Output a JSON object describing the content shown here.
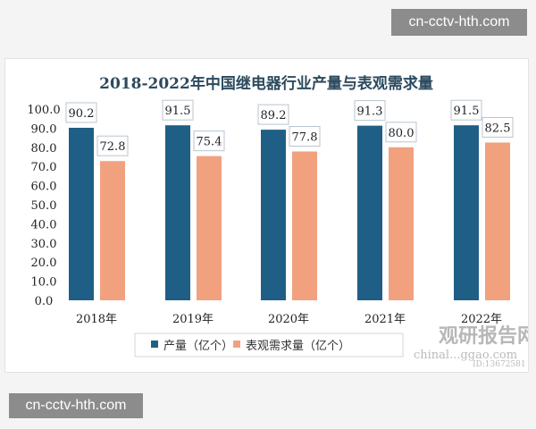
{
  "watermarks": [
    "cn-cctv-hth.com",
    "cn-cctv-hth.com"
  ],
  "logo": {
    "name": "观研报告网",
    "site": "chinal...ggao.com",
    "id": "ID:13672581"
  },
  "chart_data": {
    "type": "bar",
    "title": "2018-2022年中国继电器行业产量与表观需求量",
    "categories": [
      "2018年",
      "2019年",
      "2020年",
      "2021年",
      "2022年"
    ],
    "series": [
      {
        "name": "产量（亿个）",
        "values": [
          90.2,
          91.5,
          89.2,
          91.3,
          91.5
        ],
        "color": "#1f5f85"
      },
      {
        "name": "表观需求量（亿个）",
        "values": [
          72.8,
          75.4,
          77.8,
          80.0,
          82.5
        ],
        "color": "#f2a17f"
      }
    ],
    "yticks": [
      "0.0",
      "10.0",
      "20.0",
      "30.0",
      "40.0",
      "50.0",
      "60.0",
      "70.0",
      "80.0",
      "90.0",
      "100.0"
    ],
    "ylim": [
      0,
      100
    ],
    "grid": false,
    "legend": "bottom"
  }
}
